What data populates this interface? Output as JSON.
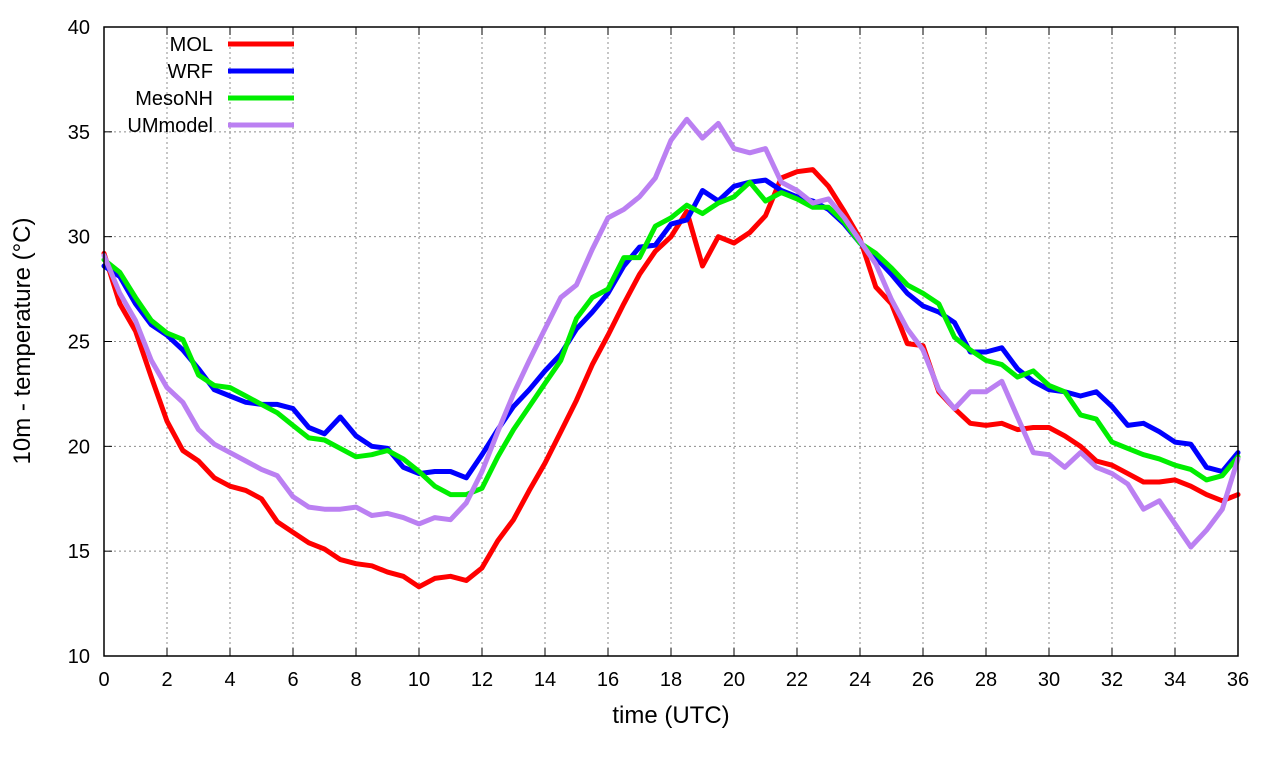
{
  "chart_data": {
    "type": "line",
    "title": "",
    "xlabel": "time (UTC)",
    "ylabel": "10m - temperature (°C)",
    "xlim": [
      0,
      36
    ],
    "ylim": [
      10,
      40
    ],
    "xticks": [
      0,
      2,
      4,
      6,
      8,
      10,
      12,
      14,
      16,
      18,
      20,
      22,
      24,
      26,
      28,
      30,
      32,
      34,
      36
    ],
    "yticks": [
      10,
      15,
      20,
      25,
      30,
      35,
      40
    ],
    "grid": true,
    "legend_position": "top-left",
    "series": [
      {
        "name": "MOL",
        "color": "#ff0000",
        "points": [
          [
            0,
            29.2
          ],
          [
            0.5,
            26.8
          ],
          [
            1,
            25.5
          ],
          [
            1.5,
            23.3
          ],
          [
            2,
            21.2
          ],
          [
            2.5,
            19.8
          ],
          [
            3,
            19.3
          ],
          [
            3.5,
            18.5
          ],
          [
            4,
            18.1
          ],
          [
            4.5,
            17.9
          ],
          [
            5,
            17.5
          ],
          [
            5.5,
            16.4
          ],
          [
            6,
            15.9
          ],
          [
            6.5,
            15.4
          ],
          [
            7,
            15.1
          ],
          [
            7.5,
            14.6
          ],
          [
            8,
            14.4
          ],
          [
            8.5,
            14.3
          ],
          [
            9,
            14.0
          ],
          [
            9.5,
            13.8
          ],
          [
            10,
            13.3
          ],
          [
            10.5,
            13.7
          ],
          [
            11,
            13.8
          ],
          [
            11.5,
            13.6
          ],
          [
            12,
            14.2
          ],
          [
            12.5,
            15.5
          ],
          [
            13,
            16.5
          ],
          [
            13.5,
            17.9
          ],
          [
            14,
            19.2
          ],
          [
            14.5,
            20.7
          ],
          [
            15,
            22.2
          ],
          [
            15.5,
            23.9
          ],
          [
            16,
            25.3
          ],
          [
            16.5,
            26.8
          ],
          [
            17,
            28.2
          ],
          [
            17.5,
            29.3
          ],
          [
            18,
            30.0
          ],
          [
            18.5,
            31.2
          ],
          [
            19,
            28.6
          ],
          [
            19.5,
            30.0
          ],
          [
            20,
            29.7
          ],
          [
            20.5,
            30.2
          ],
          [
            21,
            31.0
          ],
          [
            21.5,
            32.8
          ],
          [
            22,
            33.1
          ],
          [
            22.5,
            33.2
          ],
          [
            23,
            32.4
          ],
          [
            23.5,
            31.2
          ],
          [
            24,
            29.9
          ],
          [
            24.5,
            27.6
          ],
          [
            25,
            26.8
          ],
          [
            25.5,
            24.9
          ],
          [
            26,
            24.8
          ],
          [
            26.5,
            22.6
          ],
          [
            27,
            21.8
          ],
          [
            27.5,
            21.1
          ],
          [
            28,
            21.0
          ],
          [
            28.5,
            21.1
          ],
          [
            29,
            20.8
          ],
          [
            29.5,
            20.9
          ],
          [
            30,
            20.9
          ],
          [
            30.5,
            20.5
          ],
          [
            31,
            20.0
          ],
          [
            31.5,
            19.3
          ],
          [
            32,
            19.1
          ],
          [
            32.5,
            18.7
          ],
          [
            33,
            18.3
          ],
          [
            33.5,
            18.3
          ],
          [
            34,
            18.4
          ],
          [
            34.5,
            18.1
          ],
          [
            35,
            17.7
          ],
          [
            35.5,
            17.4
          ],
          [
            36,
            17.7
          ]
        ]
      },
      {
        "name": "WRF",
        "color": "#0000ff",
        "points": [
          [
            0,
            28.6
          ],
          [
            0.5,
            28.1
          ],
          [
            1,
            26.8
          ],
          [
            1.5,
            25.8
          ],
          [
            2,
            25.3
          ],
          [
            2.5,
            24.6
          ],
          [
            3,
            23.7
          ],
          [
            3.5,
            22.7
          ],
          [
            4,
            22.4
          ],
          [
            4.5,
            22.1
          ],
          [
            5,
            22.0
          ],
          [
            5.5,
            22.0
          ],
          [
            6,
            21.8
          ],
          [
            6.5,
            20.9
          ],
          [
            7,
            20.6
          ],
          [
            7.5,
            21.4
          ],
          [
            8,
            20.5
          ],
          [
            8.5,
            20.0
          ],
          [
            9,
            19.9
          ],
          [
            9.5,
            19.0
          ],
          [
            10,
            18.7
          ],
          [
            10.5,
            18.8
          ],
          [
            11,
            18.8
          ],
          [
            11.5,
            18.5
          ],
          [
            12,
            19.6
          ],
          [
            12.5,
            20.8
          ],
          [
            13,
            21.9
          ],
          [
            13.5,
            22.7
          ],
          [
            14,
            23.6
          ],
          [
            14.5,
            24.4
          ],
          [
            15,
            25.6
          ],
          [
            15.5,
            26.4
          ],
          [
            16,
            27.3
          ],
          [
            16.5,
            28.6
          ],
          [
            17,
            29.5
          ],
          [
            17.5,
            29.6
          ],
          [
            18,
            30.6
          ],
          [
            18.5,
            30.8
          ],
          [
            19,
            32.2
          ],
          [
            19.5,
            31.7
          ],
          [
            20,
            32.4
          ],
          [
            20.5,
            32.6
          ],
          [
            21,
            32.7
          ],
          [
            21.5,
            32.2
          ],
          [
            22,
            31.9
          ],
          [
            22.5,
            31.7
          ],
          [
            23,
            31.3
          ],
          [
            23.5,
            30.6
          ],
          [
            24,
            29.7
          ],
          [
            24.5,
            29.0
          ],
          [
            25,
            28.2
          ],
          [
            25.5,
            27.3
          ],
          [
            26,
            26.7
          ],
          [
            26.5,
            26.4
          ],
          [
            27,
            25.9
          ],
          [
            27.5,
            24.5
          ],
          [
            28,
            24.5
          ],
          [
            28.5,
            24.7
          ],
          [
            29,
            23.7
          ],
          [
            29.5,
            23.1
          ],
          [
            30,
            22.7
          ],
          [
            30.5,
            22.6
          ],
          [
            31,
            22.4
          ],
          [
            31.5,
            22.6
          ],
          [
            32,
            21.9
          ],
          [
            32.5,
            21.0
          ],
          [
            33,
            21.1
          ],
          [
            33.5,
            20.7
          ],
          [
            34,
            20.2
          ],
          [
            34.5,
            20.1
          ],
          [
            35,
            19.0
          ],
          [
            35.5,
            18.8
          ],
          [
            36,
            19.7
          ]
        ]
      },
      {
        "name": "MesoNH",
        "color": "#00ee00",
        "points": [
          [
            0,
            28.9
          ],
          [
            0.5,
            28.3
          ],
          [
            1,
            27.1
          ],
          [
            1.5,
            26.0
          ],
          [
            2,
            25.4
          ],
          [
            2.5,
            25.1
          ],
          [
            3,
            23.4
          ],
          [
            3.5,
            22.9
          ],
          [
            4,
            22.8
          ],
          [
            4.5,
            22.4
          ],
          [
            5,
            22.0
          ],
          [
            5.5,
            21.6
          ],
          [
            6,
            21.0
          ],
          [
            6.5,
            20.4
          ],
          [
            7,
            20.3
          ],
          [
            7.5,
            19.9
          ],
          [
            8,
            19.5
          ],
          [
            8.5,
            19.6
          ],
          [
            9,
            19.8
          ],
          [
            9.5,
            19.4
          ],
          [
            10,
            18.8
          ],
          [
            10.5,
            18.1
          ],
          [
            11,
            17.7
          ],
          [
            11.5,
            17.7
          ],
          [
            12,
            18.0
          ],
          [
            12.5,
            19.5
          ],
          [
            13,
            20.8
          ],
          [
            13.5,
            21.9
          ],
          [
            14,
            23.0
          ],
          [
            14.5,
            24.1
          ],
          [
            15,
            26.1
          ],
          [
            15.5,
            27.1
          ],
          [
            16,
            27.5
          ],
          [
            16.5,
            29.0
          ],
          [
            17,
            29.0
          ],
          [
            17.5,
            30.5
          ],
          [
            18,
            30.9
          ],
          [
            18.5,
            31.5
          ],
          [
            19,
            31.1
          ],
          [
            19.5,
            31.6
          ],
          [
            20,
            31.9
          ],
          [
            20.5,
            32.6
          ],
          [
            21,
            31.7
          ],
          [
            21.5,
            32.1
          ],
          [
            22,
            31.8
          ],
          [
            22.5,
            31.4
          ],
          [
            23,
            31.4
          ],
          [
            23.5,
            30.7
          ],
          [
            24,
            29.7
          ],
          [
            24.5,
            29.2
          ],
          [
            25,
            28.5
          ],
          [
            25.5,
            27.7
          ],
          [
            26,
            27.3
          ],
          [
            26.5,
            26.8
          ],
          [
            27,
            25.2
          ],
          [
            27.5,
            24.6
          ],
          [
            28,
            24.1
          ],
          [
            28.5,
            23.9
          ],
          [
            29,
            23.3
          ],
          [
            29.5,
            23.6
          ],
          [
            30,
            22.9
          ],
          [
            30.5,
            22.6
          ],
          [
            31,
            21.5
          ],
          [
            31.5,
            21.3
          ],
          [
            32,
            20.2
          ],
          [
            32.5,
            19.9
          ],
          [
            33,
            19.6
          ],
          [
            33.5,
            19.4
          ],
          [
            34,
            19.1
          ],
          [
            34.5,
            18.9
          ],
          [
            35,
            18.4
          ],
          [
            35.5,
            18.6
          ],
          [
            36,
            19.5
          ]
        ]
      },
      {
        "name": "UMmodel",
        "color": "#bb80f2",
        "points": [
          [
            0,
            29.1
          ],
          [
            0.5,
            27.3
          ],
          [
            1,
            26.0
          ],
          [
            1.5,
            24.1
          ],
          [
            2,
            22.8
          ],
          [
            2.5,
            22.1
          ],
          [
            3,
            20.8
          ],
          [
            3.5,
            20.1
          ],
          [
            4,
            19.7
          ],
          [
            4.5,
            19.3
          ],
          [
            5,
            18.9
          ],
          [
            5.5,
            18.6
          ],
          [
            6,
            17.6
          ],
          [
            6.5,
            17.1
          ],
          [
            7,
            17.0
          ],
          [
            7.5,
            17.0
          ],
          [
            8,
            17.1
          ],
          [
            8.5,
            16.7
          ],
          [
            9,
            16.8
          ],
          [
            9.5,
            16.6
          ],
          [
            10,
            16.3
          ],
          [
            10.5,
            16.6
          ],
          [
            11,
            16.5
          ],
          [
            11.5,
            17.3
          ],
          [
            12,
            18.8
          ],
          [
            12.5,
            20.7
          ],
          [
            13,
            22.5
          ],
          [
            13.5,
            24.1
          ],
          [
            14,
            25.6
          ],
          [
            14.5,
            27.1
          ],
          [
            15,
            27.7
          ],
          [
            15.5,
            29.4
          ],
          [
            16,
            30.9
          ],
          [
            16.5,
            31.3
          ],
          [
            17,
            31.9
          ],
          [
            17.5,
            32.8
          ],
          [
            18,
            34.6
          ],
          [
            18.5,
            35.6
          ],
          [
            19,
            34.7
          ],
          [
            19.5,
            35.4
          ],
          [
            20,
            34.2
          ],
          [
            20.5,
            34.0
          ],
          [
            21,
            34.2
          ],
          [
            21.5,
            32.6
          ],
          [
            22,
            32.2
          ],
          [
            22.5,
            31.6
          ],
          [
            23,
            31.8
          ],
          [
            23.5,
            30.9
          ],
          [
            24,
            29.8
          ],
          [
            24.5,
            28.7
          ],
          [
            25,
            27.0
          ],
          [
            25.5,
            25.6
          ],
          [
            26,
            24.6
          ],
          [
            26.5,
            22.7
          ],
          [
            27,
            21.8
          ],
          [
            27.5,
            22.6
          ],
          [
            28,
            22.6
          ],
          [
            28.5,
            23.1
          ],
          [
            29,
            21.4
          ],
          [
            29.5,
            19.7
          ],
          [
            30,
            19.6
          ],
          [
            30.5,
            19.0
          ],
          [
            31,
            19.7
          ],
          [
            31.5,
            19.0
          ],
          [
            32,
            18.7
          ],
          [
            32.5,
            18.2
          ],
          [
            33,
            17.0
          ],
          [
            33.5,
            17.4
          ],
          [
            34,
            16.3
          ],
          [
            34.5,
            15.2
          ],
          [
            35,
            16.0
          ],
          [
            35.5,
            17.0
          ],
          [
            36,
            19.4
          ]
        ]
      }
    ]
  }
}
